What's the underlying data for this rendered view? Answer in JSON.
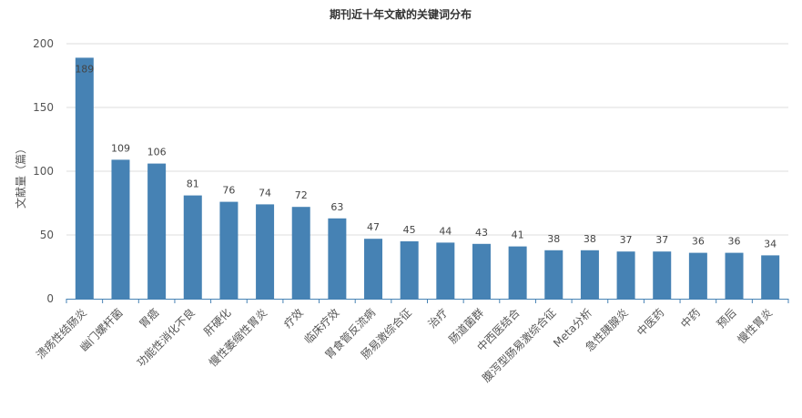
{
  "chart_data": {
    "type": "bar",
    "title": "期刊近十年文献的关键词分布",
    "ylabel": "文献量（篇）",
    "xlabel": "",
    "ylim": [
      0,
      200
    ],
    "yticks": [
      0,
      50,
      100,
      150,
      200
    ],
    "grid": true,
    "legend": "none",
    "bar_color": "#4682b4",
    "categories": [
      "溃疡性结肠炎",
      "幽门螺杆菌",
      "胃癌",
      "功能性消化不良",
      "肝硬化",
      "慢性萎缩性胃炎",
      "疗效",
      "临床疗效",
      "胃食管反流病",
      "肠易激综合征",
      "治疗",
      "肠道菌群",
      "中西医结合",
      "腹泻型肠易激综合征",
      "Meta分析",
      "急性胰腺炎",
      "中医药",
      "中药",
      "预后",
      "慢性胃炎"
    ],
    "values": [
      189,
      109,
      106,
      81,
      76,
      74,
      72,
      63,
      47,
      45,
      44,
      43,
      41,
      38,
      38,
      37,
      37,
      36,
      36,
      34
    ]
  }
}
